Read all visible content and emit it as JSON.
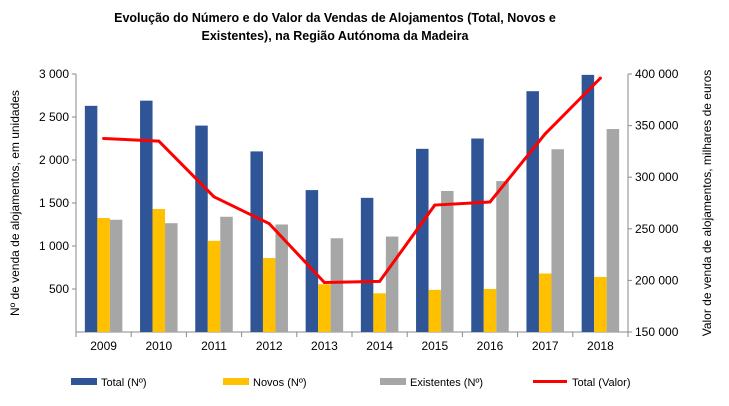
{
  "chart_data": {
    "type": "bar",
    "title_lines": [
      "Evolução do Número e do Valor da Vendas de Alojamentos (Total, Novos  e",
      "Existentes),  na Região Autónoma  da Madeira"
    ],
    "categories": [
      "2009",
      "2010",
      "2011",
      "2012",
      "2013",
      "2014",
      "2015",
      "2016",
      "2017",
      "2018"
    ],
    "ylabel_left": "Nº de venda de alojamentos, em unidades",
    "ylabel_right": "Valor de venda de alojamentos, milhares de euros",
    "ylim_left": [
      0,
      3000
    ],
    "yticks_left": [
      "500",
      "1 000",
      "1 500",
      "2 000",
      "2 500",
      "3 000"
    ],
    "ylim_right": [
      150000,
      400000
    ],
    "yticks_right": [
      "150 000",
      "200 000",
      "250 000",
      "300 000",
      "350 000",
      "400 000"
    ],
    "grid": false,
    "legend_position": "bottom",
    "series": [
      {
        "name": "Total (Nº)",
        "type": "bar",
        "axis": "left",
        "color": "#2F5597",
        "values": [
          2630,
          2690,
          2400,
          2100,
          1650,
          1560,
          2130,
          2250,
          2800,
          2990
        ]
      },
      {
        "name": "Novos (Nº)",
        "type": "bar",
        "axis": "left",
        "color": "#FFC000",
        "values": [
          1325,
          1430,
          1060,
          860,
          555,
          450,
          490,
          500,
          680,
          640
        ]
      },
      {
        "name": "Existentes (Nº)",
        "type": "bar",
        "axis": "left",
        "color": "#A6A6A6",
        "values": [
          1305,
          1265,
          1340,
          1250,
          1090,
          1110,
          1640,
          1755,
          2125,
          2360
        ]
      },
      {
        "name": "Total (Valor)",
        "type": "line",
        "axis": "right",
        "color": "#FF0000",
        "values": [
          337500,
          335000,
          281000,
          255000,
          198000,
          199000,
          273000,
          276000,
          342000,
          396000
        ]
      }
    ]
  }
}
